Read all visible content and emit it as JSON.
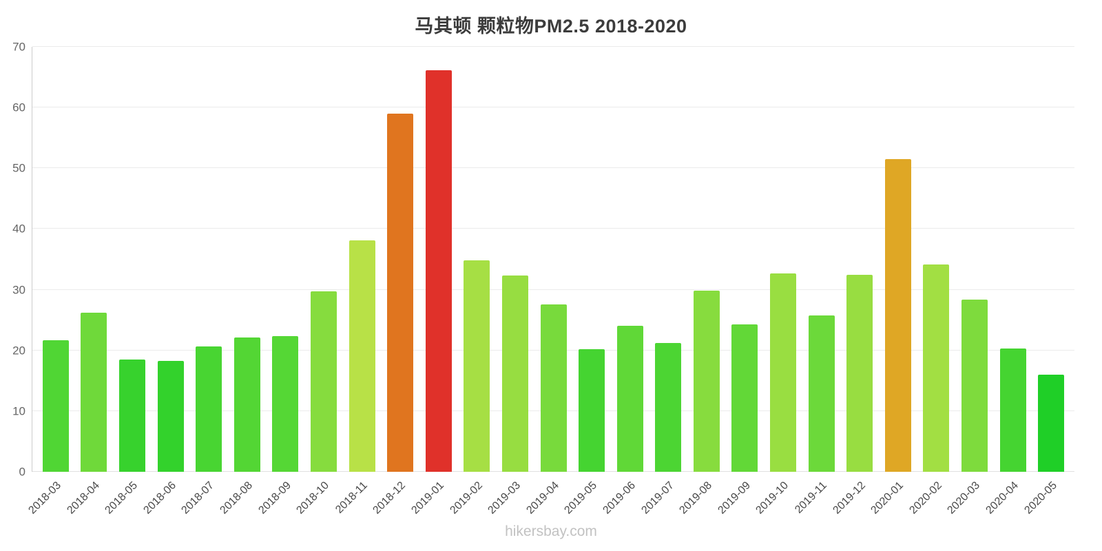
{
  "watermark": "hikersbay.com",
  "chart_data": {
    "type": "bar",
    "title": "马其顿 颗粒物PM2.5 2018-2020",
    "xlabel": "",
    "ylabel": "",
    "ylim": [
      0,
      70
    ],
    "yticks": [
      0,
      10,
      20,
      30,
      40,
      50,
      60,
      70
    ],
    "grid": true,
    "legend": "none",
    "bar_color_scale": "green (low) through yellow-green and gold/orange to red (high)",
    "categories": [
      "2018-03",
      "2018-04",
      "2018-05",
      "2018-06",
      "2018-07",
      "2018-08",
      "2018-09",
      "2018-10",
      "2018-11",
      "2018-12",
      "2019-01",
      "2019-02",
      "2019-03",
      "2019-04",
      "2019-05",
      "2019-06",
      "2019-07",
      "2019-08",
      "2019-09",
      "2019-10",
      "2019-11",
      "2019-12",
      "2020-01",
      "2020-02",
      "2020-03",
      "2020-04",
      "2020-05"
    ],
    "values": [
      21.7,
      26.2,
      18.5,
      18.3,
      20.7,
      22.1,
      22.4,
      29.7,
      38.1,
      59.0,
      66.1,
      34.8,
      32.3,
      27.6,
      20.2,
      24.0,
      21.2,
      29.8,
      24.3,
      32.7,
      25.8,
      32.5,
      51.5,
      34.1,
      28.4,
      20.3,
      16.0
    ],
    "colors": [
      "#50d634",
      "#6fd93a",
      "#37d22d",
      "#33d22c",
      "#48d532",
      "#53d634",
      "#55d735",
      "#86dc3e",
      "#b8e147",
      "#e0751f",
      "#e0312a",
      "#a6df44",
      "#97dd41",
      "#78da3c",
      "#45d431",
      "#60d837",
      "#4cd533",
      "#87dc3e",
      "#62d837",
      "#99de41",
      "#6cd93a",
      "#98dd41",
      "#dfa725",
      "#a2df43",
      "#7edb3d",
      "#45d431",
      "#1fcf27"
    ]
  }
}
